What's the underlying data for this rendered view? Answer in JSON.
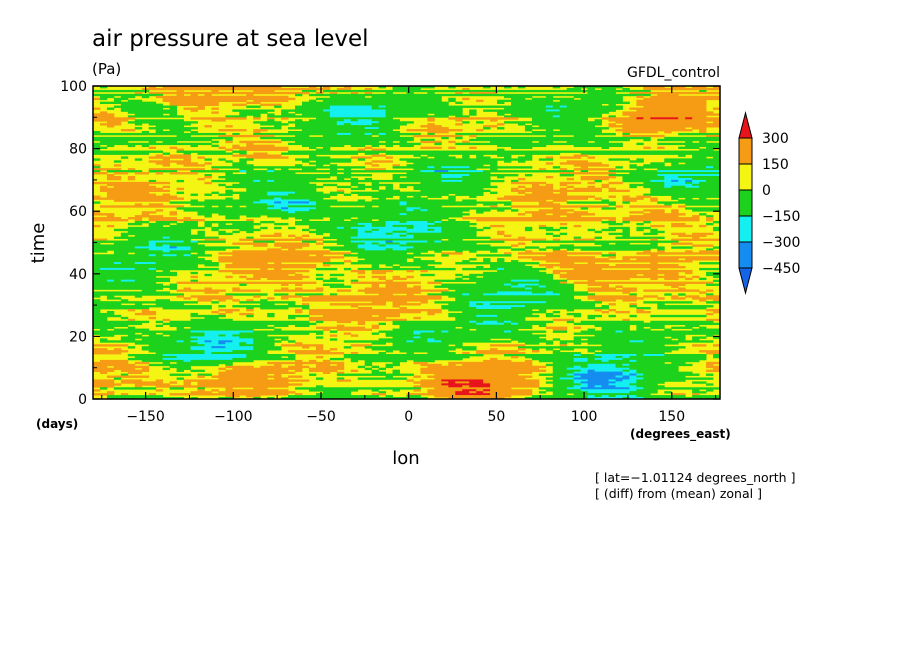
{
  "chart_data": {
    "type": "heatmap",
    "title": "air pressure at sea level",
    "units": "(Pa)",
    "dataset": "GFDL_control",
    "xlabel": "lon",
    "ylabel": "time",
    "x_units": "(degrees_east)",
    "y_units": "(days)",
    "xlim": [
      -180,
      177.5
    ],
    "ylim": [
      0,
      100
    ],
    "x_ticks": [
      -150,
      -100,
      -50,
      0,
      50,
      100,
      150
    ],
    "x_tick_labels": [
      "−150",
      "−100",
      "−50",
      "0",
      "50",
      "100",
      "150"
    ],
    "y_ticks": [
      0,
      20,
      40,
      60,
      80,
      100
    ],
    "y_tick_labels": [
      "0",
      "20",
      "40",
      "60",
      "80",
      "100"
    ],
    "colorbar": {
      "levels": [
        300,
        150,
        0,
        -150,
        -300,
        -450
      ],
      "labels": [
        "300",
        "150",
        "0",
        "−150",
        "−300",
        "−450"
      ],
      "colors": [
        "#e8141c",
        "#f59c14",
        "#f5f514",
        "#1cd21c",
        "#14f0f0",
        "#148cf0",
        "#1464e6"
      ]
    },
    "notes": [
      "[ lat=−1.01124 degrees_north ]",
      "[ (diff) from (mean) zonal ]"
    ]
  }
}
